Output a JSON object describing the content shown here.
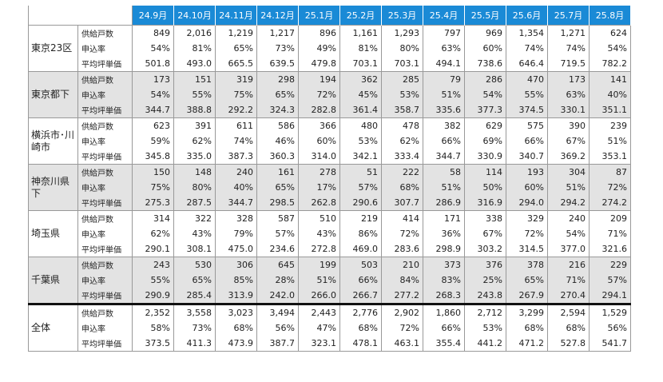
{
  "table": {
    "columns": [
      "24.9月",
      "24.10月",
      "24.11月",
      "24.12月",
      "25.1月",
      "25.2月",
      "25.3月",
      "25.4月",
      "25.5月",
      "25.6月",
      "25.7月",
      "25.8月"
    ],
    "groups": [
      {
        "name": "東京23区",
        "rows": [
          {
            "label": "供給戸数",
            "values": [
              "849",
              "2,016",
              "1,219",
              "1,217",
              "896",
              "1,161",
              "1,293",
              "797",
              "969",
              "1,354",
              "1,271",
              "624"
            ]
          },
          {
            "label": "申込率",
            "values": [
              "54%",
              "81%",
              "65%",
              "73%",
              "49%",
              "81%",
              "80%",
              "63%",
              "60%",
              "74%",
              "74%",
              "54%"
            ]
          },
          {
            "label": "平均坪単価",
            "values": [
              "501.8",
              "493.0",
              "665.5",
              "639.5",
              "479.8",
              "703.1",
              "703.1",
              "494.1",
              "738.6",
              "646.4",
              "719.5",
              "782.2"
            ]
          }
        ]
      },
      {
        "name": "東京都下",
        "rows": [
          {
            "label": "供給戸数",
            "values": [
              "173",
              "151",
              "319",
              "298",
              "194",
              "362",
              "285",
              "79",
              "286",
              "470",
              "173",
              "141"
            ]
          },
          {
            "label": "申込率",
            "values": [
              "54%",
              "55%",
              "75%",
              "65%",
              "72%",
              "45%",
              "53%",
              "51%",
              "54%",
              "55%",
              "63%",
              "40%"
            ]
          },
          {
            "label": "平均坪単価",
            "values": [
              "344.7",
              "388.8",
              "292.2",
              "324.3",
              "282.8",
              "361.4",
              "358.7",
              "335.6",
              "377.3",
              "374.5",
              "330.1",
              "351.1"
            ]
          }
        ]
      },
      {
        "name": "横浜市･川崎市",
        "rows": [
          {
            "label": "供給戸数",
            "values": [
              "623",
              "391",
              "611",
              "586",
              "366",
              "480",
              "478",
              "382",
              "629",
              "575",
              "390",
              "239"
            ]
          },
          {
            "label": "申込率",
            "values": [
              "59%",
              "62%",
              "74%",
              "46%",
              "60%",
              "53%",
              "62%",
              "66%",
              "69%",
              "66%",
              "67%",
              "51%"
            ]
          },
          {
            "label": "平均坪単価",
            "values": [
              "345.8",
              "335.0",
              "387.3",
              "360.3",
              "314.0",
              "342.1",
              "333.4",
              "344.7",
              "330.9",
              "340.7",
              "369.2",
              "353.1"
            ]
          }
        ]
      },
      {
        "name": "神奈川県下",
        "rows": [
          {
            "label": "供給戸数",
            "values": [
              "150",
              "148",
              "240",
              "161",
              "278",
              "51",
              "222",
              "58",
              "114",
              "193",
              "304",
              "87"
            ]
          },
          {
            "label": "申込率",
            "values": [
              "75%",
              "80%",
              "40%",
              "65%",
              "17%",
              "57%",
              "68%",
              "51%",
              "50%",
              "60%",
              "51%",
              "72%"
            ]
          },
          {
            "label": "平均坪単価",
            "values": [
              "275.3",
              "287.5",
              "344.7",
              "298.5",
              "262.8",
              "290.6",
              "307.7",
              "286.9",
              "316.9",
              "294.0",
              "294.2",
              "274.2"
            ]
          }
        ]
      },
      {
        "name": "埼玉県",
        "rows": [
          {
            "label": "供給戸数",
            "values": [
              "314",
              "322",
              "328",
              "587",
              "510",
              "219",
              "414",
              "171",
              "338",
              "329",
              "240",
              "209"
            ]
          },
          {
            "label": "申込率",
            "values": [
              "62%",
              "43%",
              "79%",
              "57%",
              "43%",
              "86%",
              "72%",
              "36%",
              "67%",
              "72%",
              "54%",
              "71%"
            ]
          },
          {
            "label": "平均坪単価",
            "values": [
              "290.1",
              "308.1",
              "475.0",
              "234.6",
              "272.8",
              "469.0",
              "283.6",
              "298.9",
              "303.2",
              "314.5",
              "377.0",
              "321.6"
            ]
          }
        ]
      },
      {
        "name": "千葉県",
        "rows": [
          {
            "label": "供給戸数",
            "values": [
              "243",
              "530",
              "306",
              "645",
              "199",
              "503",
              "210",
              "373",
              "376",
              "378",
              "216",
              "229"
            ]
          },
          {
            "label": "申込率",
            "values": [
              "55%",
              "65%",
              "85%",
              "28%",
              "51%",
              "66%",
              "84%",
              "83%",
              "25%",
              "65%",
              "71%",
              "57%"
            ]
          },
          {
            "label": "平均坪単価",
            "values": [
              "290.9",
              "285.4",
              "313.9",
              "242.0",
              "266.0",
              "266.7",
              "277.2",
              "268.3",
              "243.8",
              "267.9",
              "270.4",
              "294.1"
            ]
          }
        ]
      },
      {
        "name": "全体",
        "rows": [
          {
            "label": "供給戸数",
            "values": [
              "2,352",
              "3,558",
              "3,023",
              "3,494",
              "2,443",
              "2,776",
              "2,902",
              "1,860",
              "2,712",
              "3,299",
              "2,594",
              "1,529"
            ]
          },
          {
            "label": "申込率",
            "values": [
              "58%",
              "73%",
              "68%",
              "56%",
              "47%",
              "68%",
              "72%",
              "66%",
              "53%",
              "68%",
              "68%",
              "56%"
            ]
          },
          {
            "label": "平均坪単価",
            "values": [
              "373.5",
              "411.3",
              "473.9",
              "387.7",
              "323.1",
              "478.1",
              "463.1",
              "355.4",
              "441.2",
              "471.2",
              "527.8",
              "541.7"
            ]
          }
        ]
      }
    ]
  }
}
